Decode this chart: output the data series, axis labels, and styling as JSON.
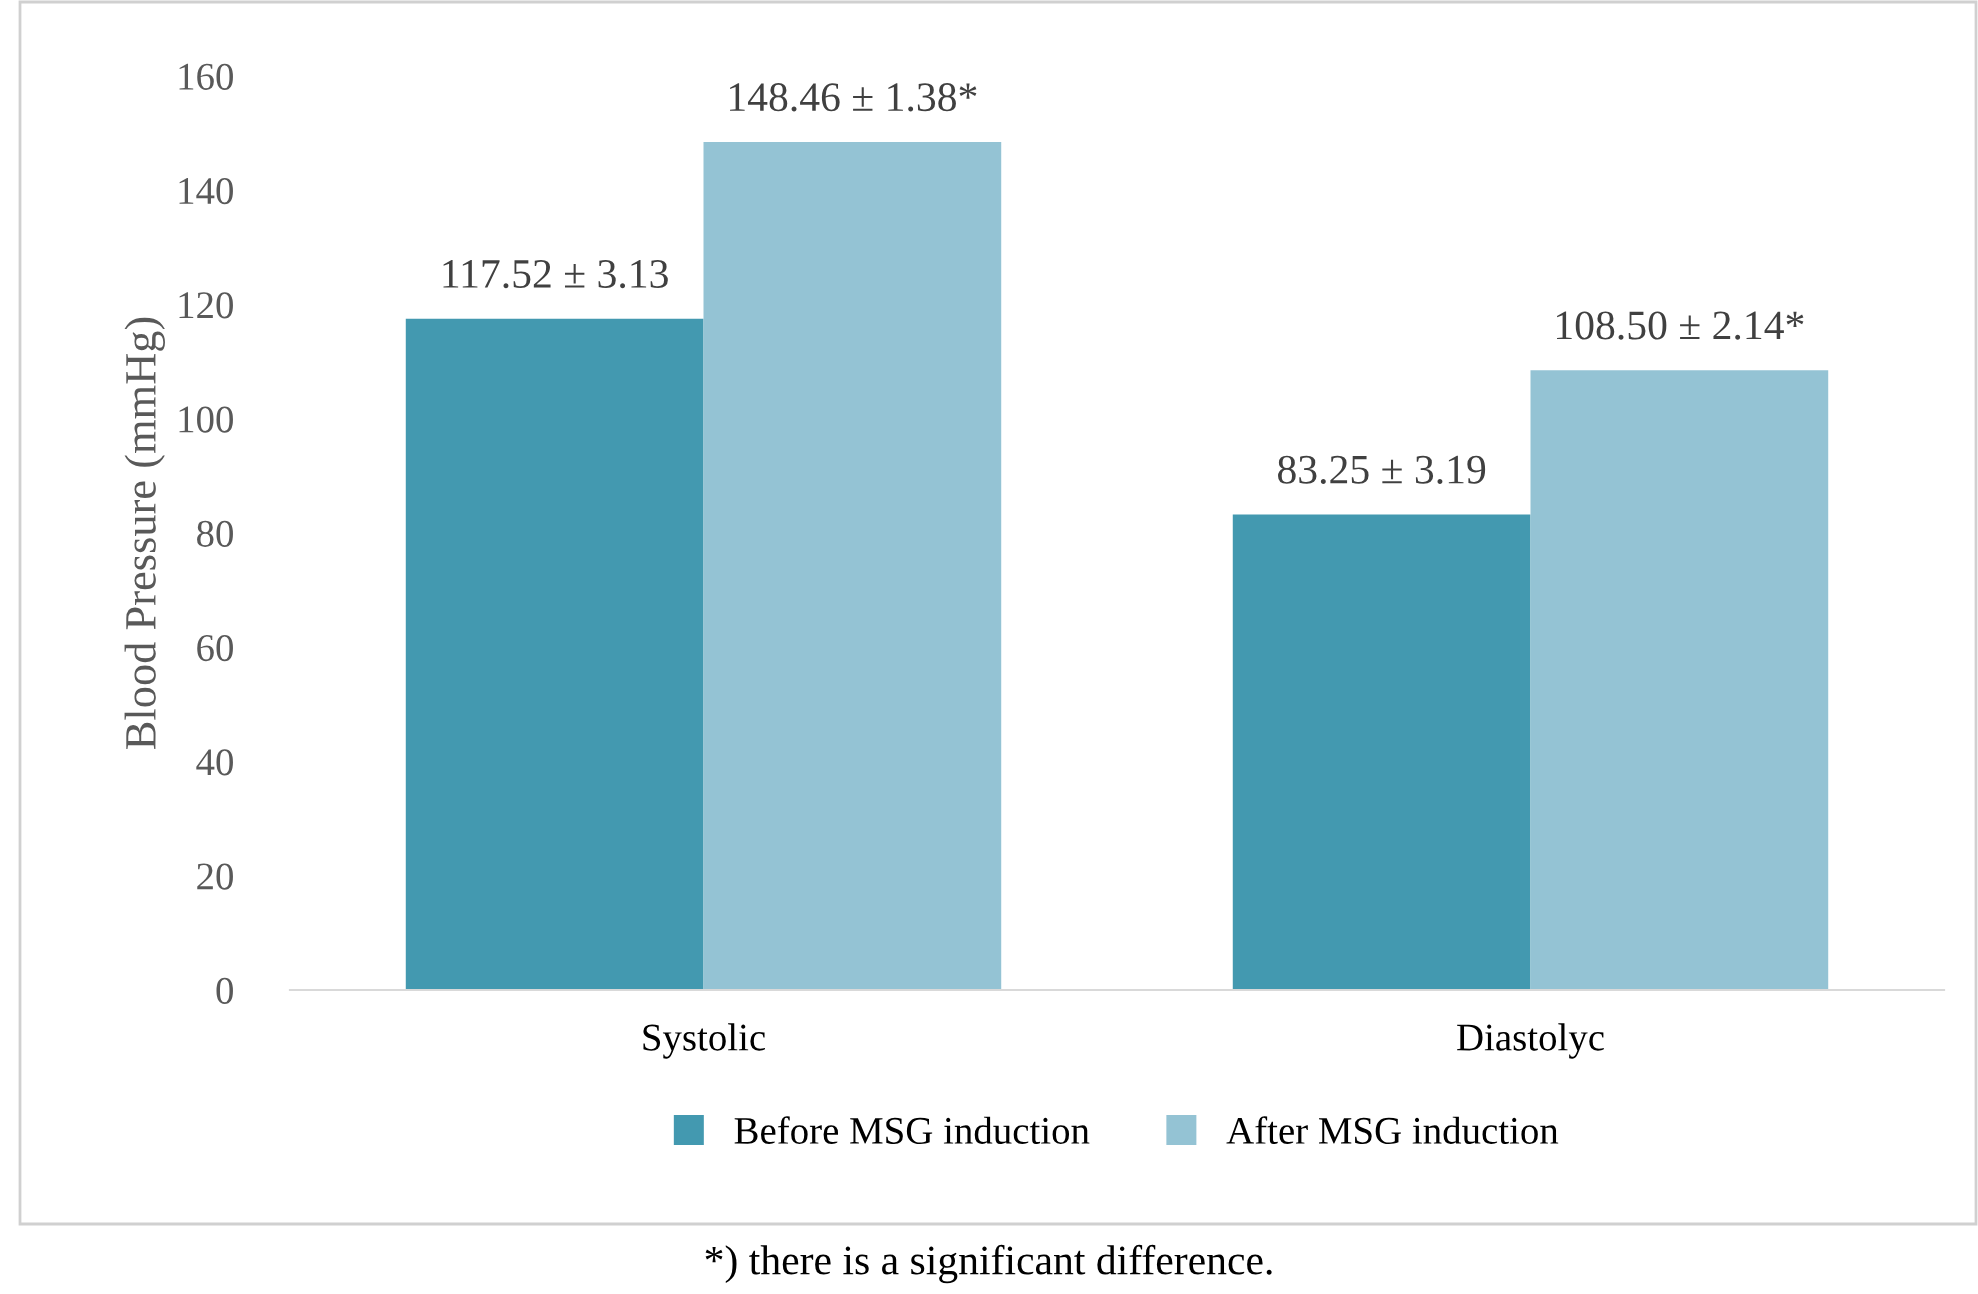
{
  "chart_data": {
    "type": "bar",
    "ylabel": "Blood Pressure (mmHg)",
    "categories": [
      "Systolic",
      "Diastolyc"
    ],
    "series": [
      {
        "name": "Before MSG induction",
        "color": "#4399b0",
        "values": [
          117.52,
          83.25
        ],
        "value_labels": [
          "117.52 ± 3.13",
          "83.25 ± 3.19"
        ]
      },
      {
        "name": "After MSG induction",
        "color": "#94c3d4",
        "values": [
          148.46,
          108.5
        ],
        "value_labels": [
          "148.46 ± 1.38*",
          "108.50 ± 2.14*"
        ]
      }
    ],
    "ylim": [
      0,
      160
    ],
    "yticks": [
      0,
      20,
      40,
      60,
      80,
      100,
      120,
      140,
      160
    ],
    "grid": false,
    "legend": "bottom",
    "annotations": [
      "*) there is a significant difference."
    ]
  }
}
